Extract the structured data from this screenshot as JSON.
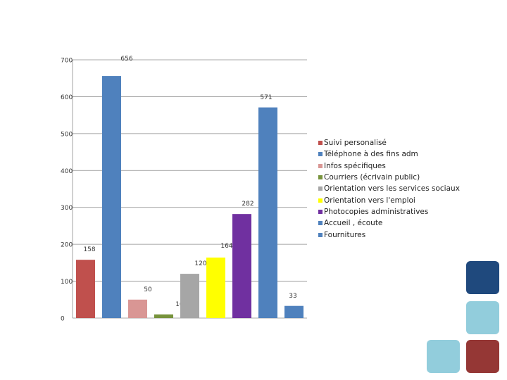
{
  "chart_data": {
    "type": "bar",
    "categories": [
      "Suivi personalisé",
      "Téléphone à des fins adm",
      "Infos spécifiques",
      "Courriers (écrivain public)",
      "Orientation vers les services sociaux",
      "Orientation vers l'emploi",
      "Photocopies administratives",
      "Accueil , écoute",
      "Fournitures"
    ],
    "values": [
      158,
      656,
      50,
      10,
      120,
      164,
      282,
      571,
      33
    ],
    "value_labels": [
      "158",
      "656",
      "50",
      "10",
      "120",
      "164",
      "282",
      "571",
      "33"
    ],
    "colors": [
      "#C0504D",
      "#4F81BD",
      "#D99694",
      "#77933C",
      "#A6A6A6",
      "#FFFF00",
      "#7030A0",
      "#4F81BD",
      "#4F81BD"
    ],
    "yticks": [
      0,
      100,
      200,
      300,
      400,
      500,
      600,
      700
    ],
    "ytick_labels": [
      "0",
      "100",
      "200",
      "300",
      "400",
      "500",
      "600",
      "700"
    ],
    "ylim": [
      0,
      700
    ],
    "grid": true,
    "legend_position": "right",
    "title": "",
    "xlabel": "",
    "ylabel": ""
  },
  "decorations": {
    "square_colors": [
      "#1F497D",
      "#92CDDC",
      "#92CDDC",
      "#953735"
    ]
  }
}
